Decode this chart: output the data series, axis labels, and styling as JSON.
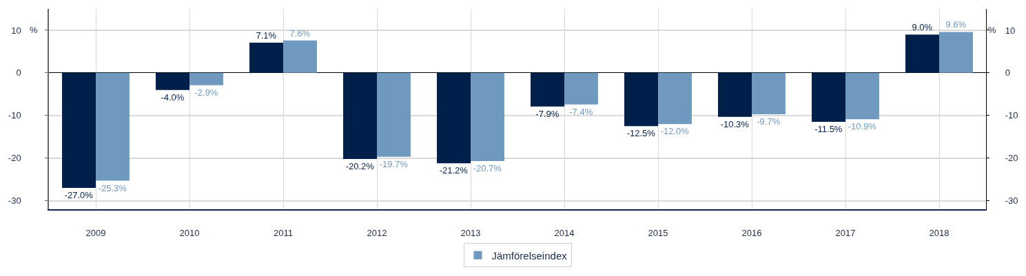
{
  "chart_data": {
    "type": "bar",
    "categories": [
      "2009",
      "2010",
      "2011",
      "2012",
      "2013",
      "2014",
      "2015",
      "2016",
      "2017",
      "2018"
    ],
    "series": [
      {
        "color": "#001f4b",
        "values": [
          -27.0,
          -4.0,
          7.1,
          -20.2,
          -21.2,
          -7.9,
          -12.5,
          -10.3,
          -11.5,
          9.0
        ],
        "value_labels": [
          "-27.0%",
          "-4.0%",
          "7.1%",
          "-20.2%",
          "-21.2%",
          "-7.9%",
          "-12.5%",
          "-10.3%",
          "-11.5%",
          "9.0%"
        ]
      },
      {
        "name": "Jämförelseindex",
        "color": "#7099bf",
        "values": [
          -25.3,
          -2.9,
          7.6,
          -19.7,
          -20.7,
          -7.4,
          -12.0,
          -9.7,
          -10.9,
          9.6
        ],
        "value_labels": [
          "-25.3%",
          "-2.9%",
          "7.6%",
          "-19.7%",
          "-20.7%",
          "-7.4%",
          "-12.0%",
          "-9.7%",
          "-10.9%",
          "9.6%"
        ]
      }
    ],
    "ylabel": "%",
    "y2label": "%",
    "ylim": [
      -32,
      15
    ],
    "yticks": [
      -30,
      -20,
      -10,
      0,
      10
    ],
    "y2lim": [
      -32,
      15
    ],
    "y2ticks": [
      -30,
      -20,
      -10,
      0,
      10
    ],
    "grid": true,
    "legend": "bottom"
  }
}
